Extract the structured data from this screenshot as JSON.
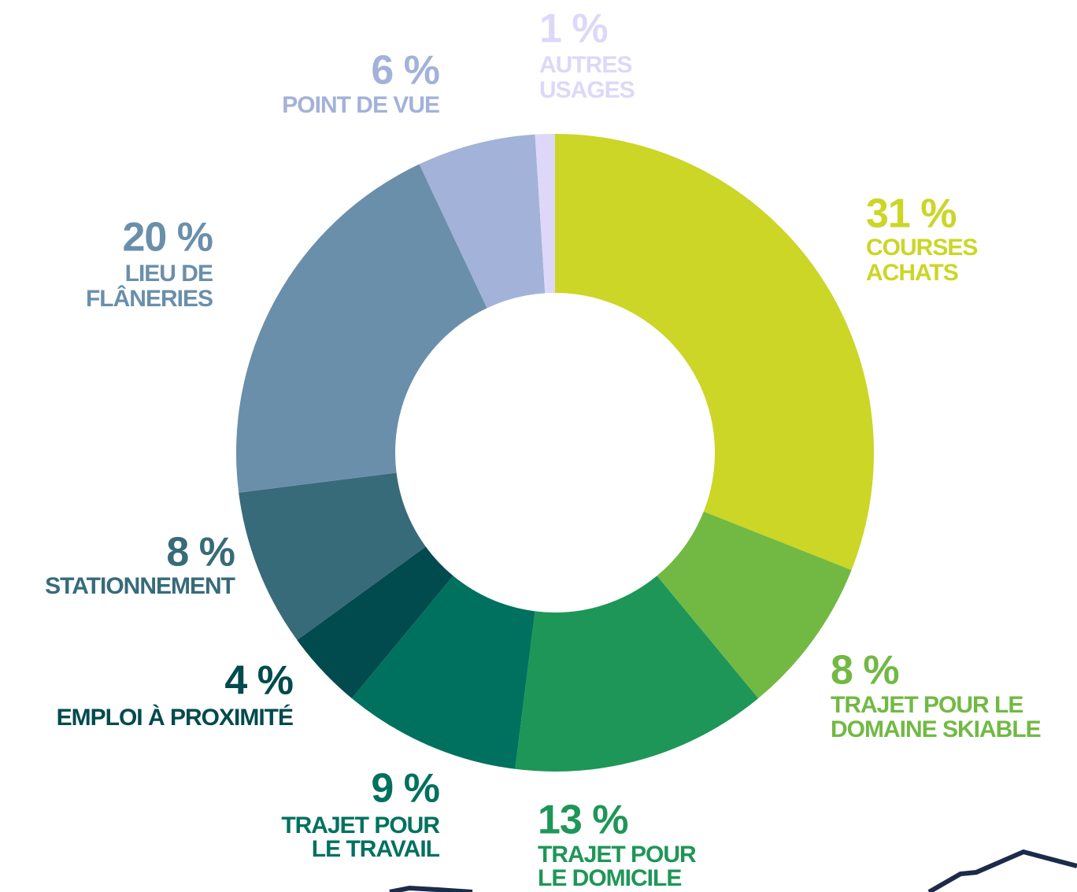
{
  "chart_data": {
    "type": "donut",
    "categories": [
      "COURSES\nACHATS",
      "TRAJET POUR LE\nDOMAINE SKIABLE",
      "TRAJET POUR\nLE DOMICILE",
      "TRAJET POUR\nLE TRAVAIL",
      "EMPLOI À PROXIMITÉ",
      "STATIONNEMENT",
      "LIEU DE\nFLÂNERIES",
      "POINT DE VUE",
      "AUTRES\nUSAGES"
    ],
    "values": [
      31,
      8,
      13,
      9,
      4,
      8,
      20,
      6,
      1
    ],
    "value_labels": [
      "31 %",
      "8 %",
      "13 %",
      "9 %",
      "4 %",
      "8 %",
      "20 %",
      "6 %",
      "1 %"
    ],
    "colors": [
      "#cbd626",
      "#72b944",
      "#1e9657",
      "#00715e",
      "#014a4e",
      "#376b7a",
      "#6a8fab",
      "#a3b2d8",
      "#ddd8f8"
    ]
  }
}
